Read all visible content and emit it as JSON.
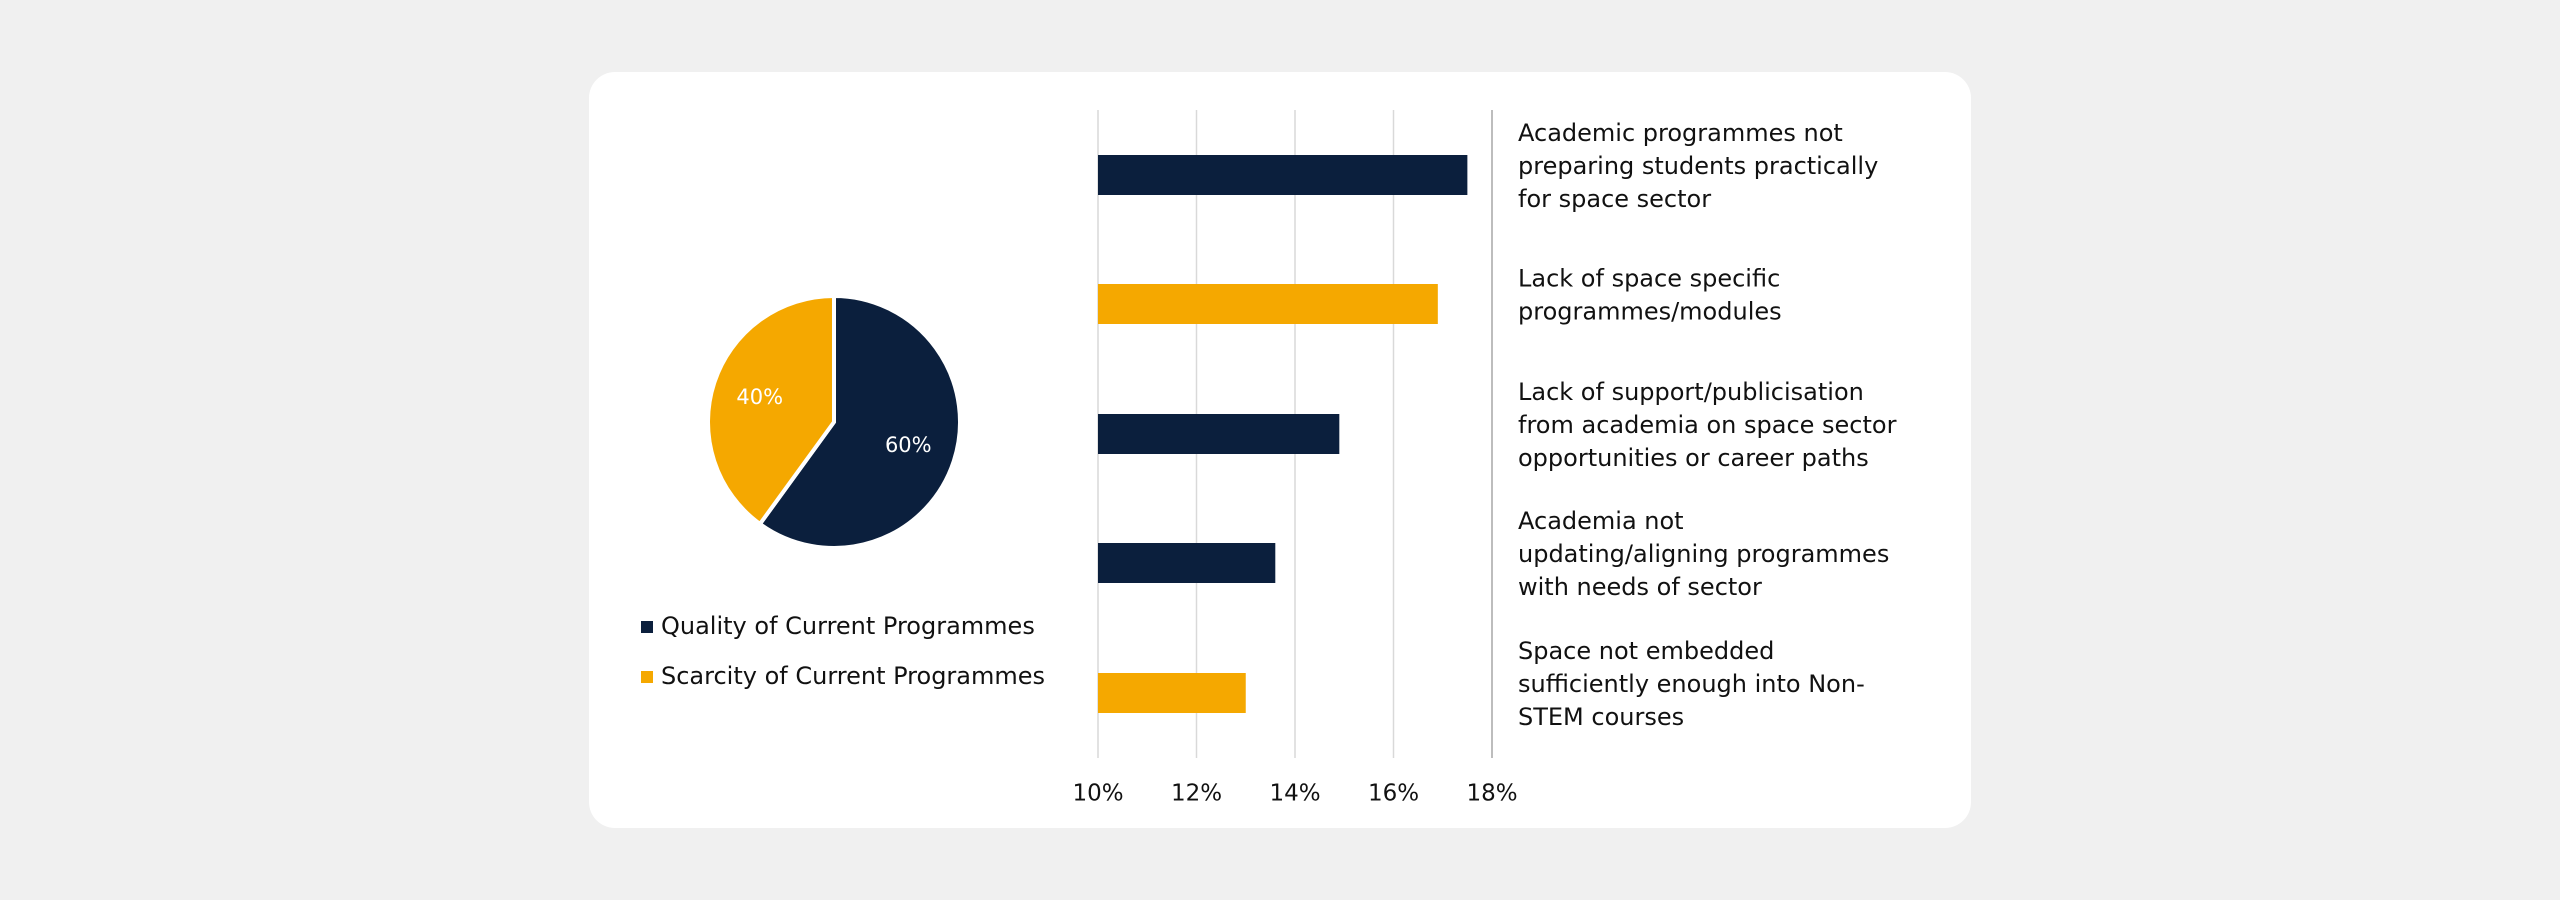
{
  "colors": {
    "navy": "#0b1f3d",
    "orange": "#f5a800",
    "grid": "#d9d9d9",
    "text": "#111111",
    "card": "#ffffff",
    "background": "#f0f0f0"
  },
  "chart_data": [
    {
      "type": "pie",
      "slices": [
        {
          "name": "Quality of Current Programmes",
          "value": 60,
          "label": "60%",
          "color": "#0b1f3d"
        },
        {
          "name": "Scarcity of Current Programmes",
          "value": 40,
          "label": "40%",
          "color": "#f5a800"
        }
      ],
      "legend": [
        "Quality of Current Programmes",
        "Scarcity of Current Programmes"
      ],
      "legend_position": "bottom"
    },
    {
      "type": "bar",
      "orientation": "horizontal",
      "categories": [
        "Academic programmes not preparing students practically for space sector",
        "Lack of space specific programmes/modules",
        "Lack of support/publicisation from academia on space sector opportunities or career paths",
        "Academia not updating/aligning programmes with needs of sector",
        "Space not embedded sufficiently enough into Non-STEM courses"
      ],
      "category_lines": [
        [
          "Academic programmes not",
          "preparing students practically",
          "for space sector"
        ],
        [
          "Lack of space specific",
          "programmes/modules"
        ],
        [
          "Lack of support/publicisation",
          "from academia on space sector",
          "opportunities or career paths"
        ],
        [
          "Academia not",
          "updating/aligning programmes",
          "with needs of sector"
        ],
        [
          "Space not embedded",
          "sufficiently enough into Non-",
          "STEM courses"
        ]
      ],
      "values": [
        17.5,
        16.9,
        14.9,
        13.6,
        13.0
      ],
      "bar_colors": [
        "#0b1f3d",
        "#f5a800",
        "#0b1f3d",
        "#0b1f3d",
        "#f5a800"
      ],
      "xlim": [
        10,
        18
      ],
      "xticks": [
        10,
        12,
        14,
        16,
        18
      ],
      "xtick_labels": [
        "10%",
        "12%",
        "14%",
        "16%",
        "18%"
      ],
      "grid": true
    }
  ]
}
